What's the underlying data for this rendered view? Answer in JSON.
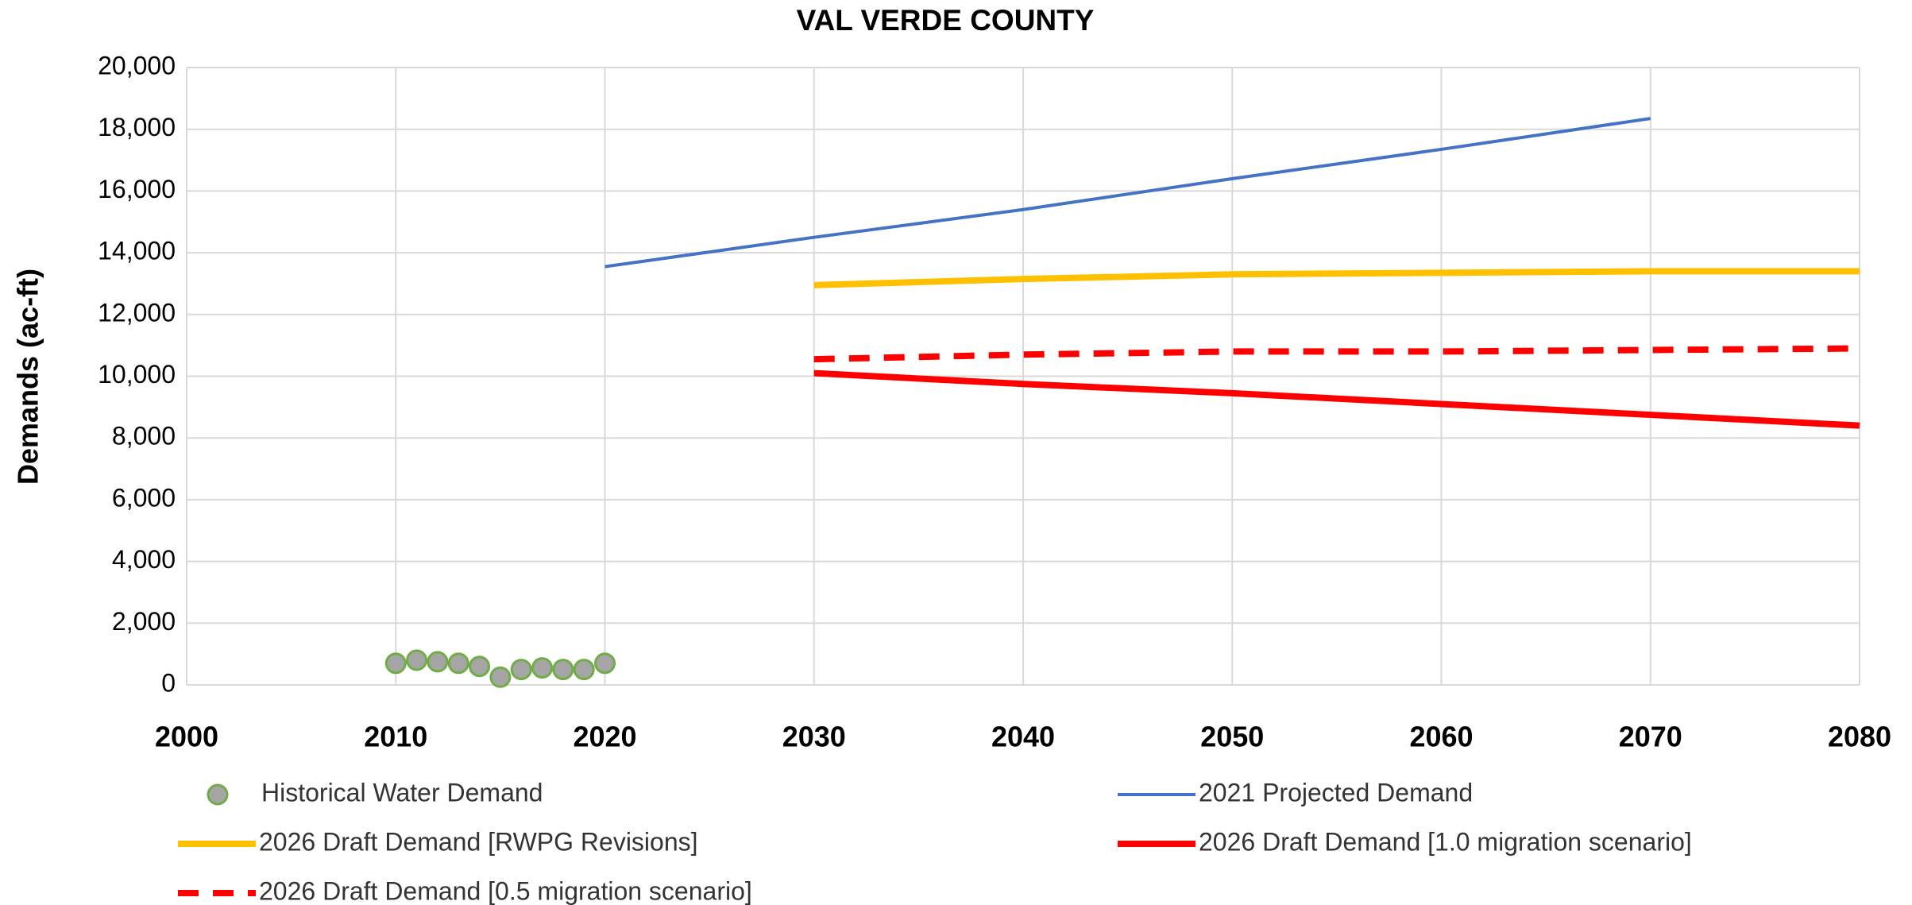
{
  "chart_data": {
    "type": "line",
    "title": "VAL VERDE COUNTY",
    "y_label": "Demands (ac-ft)",
    "xlim": [
      2000,
      2080
    ],
    "xticks": [
      2000,
      2010,
      2020,
      2030,
      2040,
      2050,
      2060,
      2070,
      2080
    ],
    "ylim": [
      0,
      20000
    ],
    "yticks": [
      0,
      {
        "value": 2000,
        "label": "2,000"
      },
      {
        "value": 4000,
        "label": "4,000"
      },
      {
        "value": 6000,
        "label": "6,000"
      },
      {
        "value": 8000,
        "label": "8,000"
      },
      {
        "value": 10000,
        "label": "10,000"
      },
      {
        "value": 12000,
        "label": "12,000"
      },
      {
        "value": 14000,
        "label": "14,000"
      },
      {
        "value": 16000,
        "label": "16,000"
      },
      {
        "value": 18000,
        "label": "18,000"
      },
      {
        "value": 20000,
        "label": "20,000"
      }
    ],
    "grid": true,
    "legend": "bottom",
    "series": [
      {
        "name": "Historical Water Demand",
        "color": "#a5a5a5",
        "edge_color": "#70ad47",
        "style": "markers",
        "x": [
          2010,
          2011,
          2012,
          2013,
          2014,
          2015,
          2016,
          2017,
          2018,
          2019,
          2020
        ],
        "values": [
          700,
          800,
          750,
          700,
          600,
          250,
          500,
          550,
          500,
          500,
          700
        ]
      },
      {
        "name": "2021 Projected Demand",
        "color": "#4472c4",
        "style": "solid",
        "x": [
          2020,
          2030,
          2040,
          2050,
          2060,
          2070
        ],
        "values": [
          13550,
          14500,
          15400,
          16400,
          17350,
          18350
        ]
      },
      {
        "name": "2026 Draft Demand [RWPG Revisions]",
        "color": "#ffc000",
        "style": "thick",
        "x": [
          2030,
          2040,
          2050,
          2060,
          2070,
          2080
        ],
        "values": [
          12950,
          13150,
          13300,
          13350,
          13400,
          13400
        ]
      },
      {
        "name": "2026 Draft Demand [1.0 migration scenario]",
        "color": "#ff0000",
        "style": "thick",
        "x": [
          2030,
          2040,
          2050,
          2060,
          2070,
          2080
        ],
        "values": [
          10100,
          9750,
          9450,
          9100,
          8750,
          8400
        ]
      },
      {
        "name": "2026 Draft Demand [0.5 migration scenario]",
        "color": "#ff0000",
        "style": "dashed",
        "x": [
          2030,
          2040,
          2050,
          2060,
          2070,
          2080
        ],
        "values": [
          10550,
          10700,
          10800,
          10800,
          10850,
          10900
        ]
      }
    ]
  }
}
